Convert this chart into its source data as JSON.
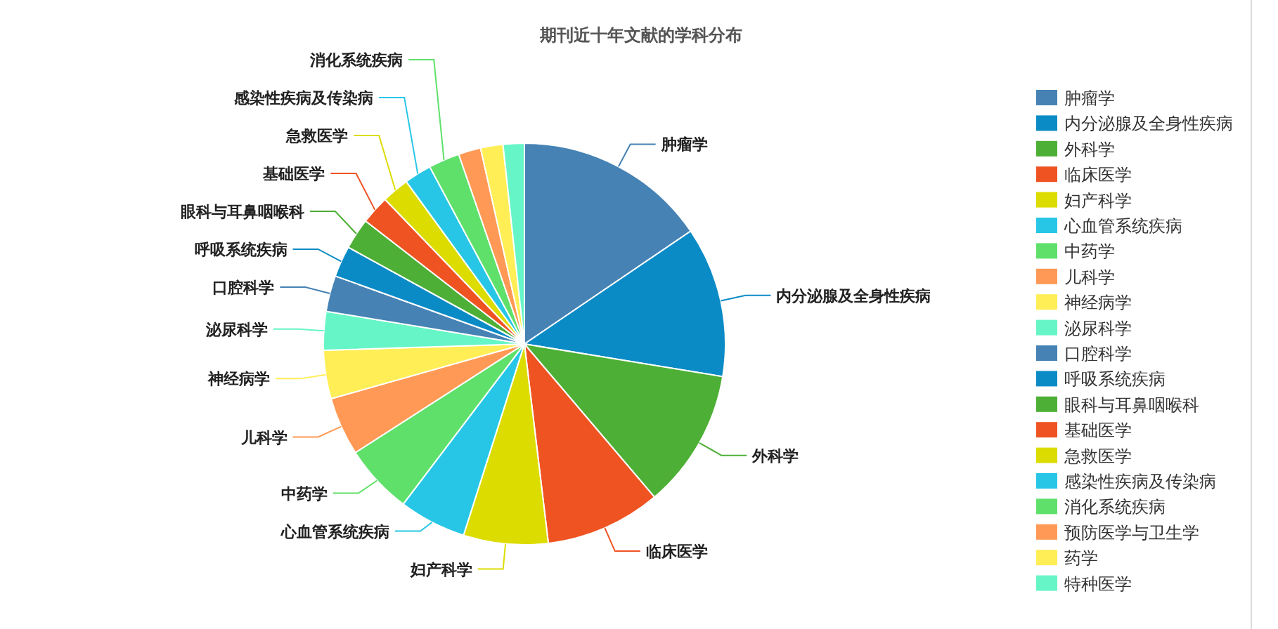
{
  "chart_data": {
    "type": "pie",
    "title": "期刊近十年文献的学科分布",
    "categories": [
      "肿瘤学",
      "内分泌腺及全身性疾病",
      "外科学",
      "临床医学",
      "妇产科学",
      "心血管系统疾病",
      "中药学",
      "儿科学",
      "神经病学",
      "泌尿科学",
      "口腔科学",
      "呼吸系统疾病",
      "眼科与耳鼻咽喉科",
      "基础医学",
      "急救医学",
      "感染性疾病及传染病",
      "消化系统疾病",
      "预防医学与卫生学",
      "药学",
      "特种医学"
    ],
    "values": [
      15.5,
      12.1,
      11.2,
      9.3,
      6.8,
      5.4,
      5.6,
      4.7,
      3.9,
      3.1,
      2.9,
      2.5,
      2.5,
      2.3,
      2.2,
      2.2,
      2.5,
      1.8,
      1.8,
      1.7
    ],
    "colors": [
      "#4682b4",
      "#0b8bc6",
      "#4daf35",
      "#ef5322",
      "#dcdc00",
      "#27c6e6",
      "#5fe06a",
      "#ff9955",
      "#ffee55",
      "#66f5c6",
      "#4682b4",
      "#0b8bc6",
      "#4daf35",
      "#ef5322",
      "#dcdc00",
      "#27c6e6",
      "#5fe06a",
      "#ff9955",
      "#ffee55",
      "#66f5c6"
    ],
    "annotations": [
      {
        "text": "肿瘤学",
        "x": "肿瘤学"
      },
      {
        "text": "内分泌腺及全身性疾病",
        "x": "内分泌腺及全身性疾病"
      },
      {
        "text": "外科学",
        "x": "外科学"
      },
      {
        "text": "临床医学",
        "x": "临床医学"
      },
      {
        "text": "妇产科学",
        "x": "妇产科学"
      },
      {
        "text": "心血管系统疾病",
        "x": "心血管系统疾病"
      },
      {
        "text": "中药学",
        "x": "中药学"
      },
      {
        "text": "儿科学",
        "x": "儿科学"
      },
      {
        "text": "神经病学",
        "x": "神经病学"
      },
      {
        "text": "泌尿科学",
        "x": "泌尿科学"
      },
      {
        "text": "口腔科学",
        "x": "口腔科学"
      },
      {
        "text": "呼吸系统疾病",
        "x": "呼吸系统疾病"
      },
      {
        "text": "眼科与耳鼻咽喉科",
        "x": "眼科与耳鼻咽喉科"
      },
      {
        "text": "基础医学",
        "x": "基础医学"
      },
      {
        "text": "急救医学",
        "x": "急救医学"
      },
      {
        "text": "感染性疾病及传染病",
        "x": "感染性疾病及传染病"
      },
      {
        "text": "消化系统疾病",
        "x": "消化系统疾病"
      }
    ],
    "legend": "right"
  }
}
